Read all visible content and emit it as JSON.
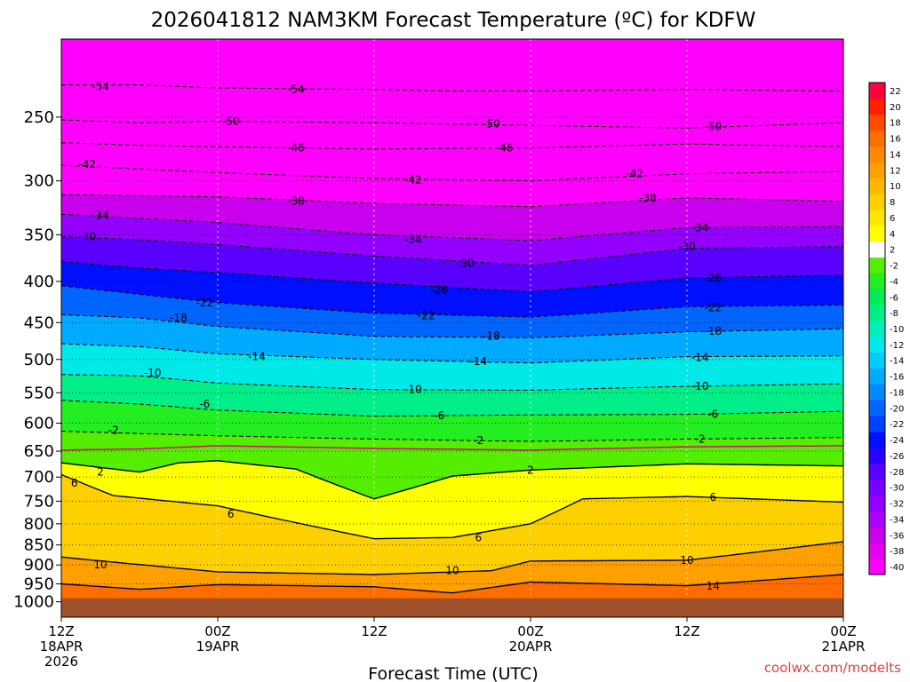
{
  "chart_data": {
    "type": "heatmap",
    "title": "2026041812 NAM3KM Forecast Temperature (ºC) for KDFW",
    "xlabel": "Forecast Time (UTC)",
    "ylabel": "",
    "credit": "coolwx.com/modelts",
    "credit_color": "#e0403c",
    "x_range_hours": [
      0,
      60
    ],
    "x_ticks": [
      {
        "hour": 0,
        "lines": [
          "12Z",
          "18APR",
          "2026"
        ]
      },
      {
        "hour": 12,
        "lines": [
          "00Z",
          "19APR"
        ]
      },
      {
        "hour": 24,
        "lines": [
          "12Z"
        ]
      },
      {
        "hour": 36,
        "lines": [
          "00Z",
          "20APR"
        ]
      },
      {
        "hour": 48,
        "lines": [
          "12Z"
        ]
      },
      {
        "hour": 60,
        "lines": [
          "00Z",
          "21APR"
        ]
      }
    ],
    "y_axis": {
      "scale": "log",
      "top_hpa": 200,
      "bottom_hpa": 1045
    },
    "y_ticks": [
      250,
      300,
      350,
      400,
      450,
      500,
      550,
      600,
      650,
      700,
      750,
      800,
      850,
      900,
      950,
      1000
    ],
    "surface_pressure_hpa": 990,
    "ground_color": "#a0522d",
    "colorbar": {
      "levels": [
        -40,
        -38,
        -36,
        -34,
        -32,
        -30,
        -28,
        -26,
        -24,
        -22,
        -20,
        -18,
        -16,
        -14,
        -12,
        -10,
        -8,
        -6,
        -4,
        -2,
        2,
        4,
        6,
        8,
        10,
        12,
        14,
        16,
        18,
        20,
        22
      ],
      "colors": [
        "#ff00ff",
        "#e400ee",
        "#c900ee",
        "#ae00ff",
        "#9400ff",
        "#7a00ff",
        "#5a00ff",
        "#2a00ff",
        "#0010ff",
        "#0040ff",
        "#0064ff",
        "#0088ff",
        "#00aaff",
        "#00ccff",
        "#00e8e8",
        "#00eebb",
        "#00ee88",
        "#00ee55",
        "#22ee22",
        "#55ee00",
        "#ffffff",
        "#ffff00",
        "#ffe800",
        "#ffd000",
        "#ffb800",
        "#ffa000",
        "#ff8800",
        "#ff6c00",
        "#ff4a00",
        "#ff2000",
        "#ff0040"
      ]
    },
    "series": [
      {
        "name": "-54",
        "values": [
          [
            0,
            228
          ],
          [
            6,
            228
          ],
          [
            12,
            230
          ],
          [
            24,
            231
          ],
          [
            30,
            232
          ],
          [
            36,
            232
          ],
          [
            48,
            231
          ],
          [
            60,
            232
          ]
        ]
      },
      {
        "name": "-50",
        "values": [
          [
            0,
            252
          ],
          [
            6,
            254
          ],
          [
            12,
            253
          ],
          [
            24,
            254
          ],
          [
            36,
            256
          ],
          [
            48,
            258
          ],
          [
            60,
            254
          ]
        ]
      },
      {
        "name": "-46",
        "values": [
          [
            0,
            269
          ],
          [
            6,
            271
          ],
          [
            12,
            272
          ],
          [
            24,
            274
          ],
          [
            36,
            273
          ],
          [
            48,
            270
          ],
          [
            60,
            272
          ]
        ]
      },
      {
        "name": "-42",
        "values": [
          [
            0,
            287
          ],
          [
            6,
            290
          ],
          [
            12,
            293
          ],
          [
            24,
            298
          ],
          [
            36,
            300
          ],
          [
            48,
            294
          ],
          [
            60,
            292
          ]
        ]
      },
      {
        "name": "-38",
        "values": [
          [
            0,
            312
          ],
          [
            6,
            313
          ],
          [
            12,
            314
          ],
          [
            24,
            320
          ],
          [
            36,
            323
          ],
          [
            48,
            315
          ],
          [
            60,
            318
          ]
        ]
      },
      {
        "name": "-34",
        "values": [
          [
            0,
            330
          ],
          [
            6,
            334
          ],
          [
            12,
            338
          ],
          [
            24,
            350
          ],
          [
            36,
            356
          ],
          [
            48,
            343
          ],
          [
            60,
            342
          ]
        ]
      },
      {
        "name": "-30",
        "values": [
          [
            0,
            352
          ],
          [
            6,
            355
          ],
          [
            12,
            360
          ],
          [
            24,
            372
          ],
          [
            36,
            382
          ],
          [
            48,
            364
          ],
          [
            60,
            362
          ]
        ]
      },
      {
        "name": "-26",
        "values": [
          [
            0,
            378
          ],
          [
            6,
            385
          ],
          [
            12,
            390
          ],
          [
            24,
            402
          ],
          [
            36,
            412
          ],
          [
            48,
            396
          ],
          [
            60,
            393
          ]
        ]
      },
      {
        "name": "-22",
        "values": [
          [
            0,
            405
          ],
          [
            6,
            415
          ],
          [
            12,
            425
          ],
          [
            24,
            438
          ],
          [
            36,
            443
          ],
          [
            48,
            430
          ],
          [
            60,
            428
          ]
        ]
      },
      {
        "name": "-18",
        "values": [
          [
            0,
            440
          ],
          [
            6,
            444
          ],
          [
            12,
            455
          ],
          [
            24,
            468
          ],
          [
            36,
            470
          ],
          [
            48,
            462
          ],
          [
            60,
            458
          ]
        ]
      },
      {
        "name": "-14",
        "values": [
          [
            0,
            478
          ],
          [
            6,
            482
          ],
          [
            12,
            492
          ],
          [
            24,
            500
          ],
          [
            36,
            505
          ],
          [
            48,
            496
          ],
          [
            60,
            495
          ]
        ]
      },
      {
        "name": "-10",
        "values": [
          [
            0,
            522
          ],
          [
            6,
            524
          ],
          [
            12,
            535
          ],
          [
            24,
            545
          ],
          [
            36,
            546
          ],
          [
            48,
            540
          ],
          [
            60,
            536
          ]
        ]
      },
      {
        "name": "-6",
        "values": [
          [
            0,
            562
          ],
          [
            6,
            568
          ],
          [
            12,
            578
          ],
          [
            24,
            588
          ],
          [
            36,
            586
          ],
          [
            48,
            585
          ],
          [
            60,
            580
          ]
        ]
      },
      {
        "name": "-2",
        "values": [
          [
            0,
            614
          ],
          [
            6,
            618
          ],
          [
            12,
            622
          ],
          [
            24,
            628
          ],
          [
            36,
            632
          ],
          [
            48,
            628
          ],
          [
            60,
            625
          ]
        ]
      },
      {
        "name": "2",
        "values": [
          [
            0,
            672
          ],
          [
            6,
            690
          ],
          [
            9,
            672
          ],
          [
            12,
            668
          ],
          [
            18,
            684
          ],
          [
            24,
            745
          ],
          [
            30,
            698
          ],
          [
            36,
            686
          ],
          [
            48,
            674
          ],
          [
            60,
            678
          ]
        ]
      },
      {
        "name": "6",
        "values": [
          [
            0,
            695
          ],
          [
            4,
            738
          ],
          [
            12,
            760
          ],
          [
            24,
            835
          ],
          [
            30,
            832
          ],
          [
            36,
            800
          ],
          [
            40,
            745
          ],
          [
            48,
            740
          ],
          [
            60,
            752
          ]
        ]
      },
      {
        "name": "10",
        "values": [
          [
            0,
            880
          ],
          [
            12,
            918
          ],
          [
            24,
            925
          ],
          [
            33,
            915
          ],
          [
            36,
            890
          ],
          [
            48,
            888
          ],
          [
            60,
            842
          ]
        ]
      },
      {
        "name": "14",
        "values": [
          [
            0,
            950
          ],
          [
            6,
            965
          ],
          [
            12,
            952
          ],
          [
            24,
            958
          ],
          [
            30,
            975
          ],
          [
            36,
            945
          ],
          [
            48,
            955
          ],
          [
            60,
            925
          ]
        ]
      }
    ],
    "highlight_isotherm": {
      "name": "0",
      "color": "#e0008a",
      "values": [
        [
          0,
          648
        ],
        [
          6,
          646
        ],
        [
          12,
          640
        ],
        [
          24,
          645
        ],
        [
          36,
          648
        ],
        [
          48,
          642
        ],
        [
          60,
          640
        ]
      ]
    },
    "contour_labels": [
      {
        "text": "-54",
        "hour": 3,
        "p": 229
      },
      {
        "text": "-54",
        "hour": 18,
        "p": 231
      },
      {
        "text": "-50",
        "hour": 13,
        "p": 253
      },
      {
        "text": "-50",
        "hour": 33,
        "p": 255
      },
      {
        "text": "-50",
        "hour": 50,
        "p": 257
      },
      {
        "text": "-46",
        "hour": 18,
        "p": 273
      },
      {
        "text": "-46",
        "hour": 34,
        "p": 273
      },
      {
        "text": "-42",
        "hour": 2,
        "p": 286
      },
      {
        "text": "-42",
        "hour": 27,
        "p": 299
      },
      {
        "text": "-42",
        "hour": 44,
        "p": 294
      },
      {
        "text": "-38",
        "hour": 18,
        "p": 318
      },
      {
        "text": "-38",
        "hour": 45,
        "p": 315
      },
      {
        "text": "-34",
        "hour": 3,
        "p": 331
      },
      {
        "text": "-34",
        "hour": 27,
        "p": 355
      },
      {
        "text": "-34",
        "hour": 49,
        "p": 343
      },
      {
        "text": "-30",
        "hour": 2,
        "p": 352
      },
      {
        "text": "-30",
        "hour": 31,
        "p": 380
      },
      {
        "text": "-30",
        "hour": 48,
        "p": 362
      },
      {
        "text": "-26",
        "hour": 29,
        "p": 410
      },
      {
        "text": "-26",
        "hour": 50,
        "p": 396
      },
      {
        "text": "-22",
        "hour": 11,
        "p": 425
      },
      {
        "text": "-22",
        "hour": 28,
        "p": 441
      },
      {
        "text": "-22",
        "hour": 50,
        "p": 431
      },
      {
        "text": "-18",
        "hour": 9,
        "p": 444
      },
      {
        "text": "-18",
        "hour": 33,
        "p": 468
      },
      {
        "text": "-18",
        "hour": 50,
        "p": 461
      },
      {
        "text": "-14",
        "hour": 15,
        "p": 496
      },
      {
        "text": "-14",
        "hour": 32,
        "p": 503
      },
      {
        "text": "-14",
        "hour": 49,
        "p": 497
      },
      {
        "text": "-10",
        "hour": 7,
        "p": 520
      },
      {
        "text": "-10",
        "hour": 27,
        "p": 545
      },
      {
        "text": "-10",
        "hour": 49,
        "p": 540
      },
      {
        "text": "-6",
        "hour": 11,
        "p": 568
      },
      {
        "text": "-6",
        "hour": 29,
        "p": 587
      },
      {
        "text": "-6",
        "hour": 50,
        "p": 585
      },
      {
        "text": "-2",
        "hour": 4,
        "p": 612
      },
      {
        "text": "-2",
        "hour": 32,
        "p": 630
      },
      {
        "text": "-2",
        "hour": 49,
        "p": 628
      },
      {
        "text": "2",
        "hour": 3,
        "p": 690
      },
      {
        "text": "2",
        "hour": 36,
        "p": 686
      },
      {
        "text": "6",
        "hour": 1,
        "p": 712
      },
      {
        "text": "6",
        "hour": 13,
        "p": 778
      },
      {
        "text": "6",
        "hour": 32,
        "p": 832
      },
      {
        "text": "6",
        "hour": 50,
        "p": 742
      },
      {
        "text": "10",
        "hour": 3,
        "p": 900
      },
      {
        "text": "10",
        "hour": 30,
        "p": 915
      },
      {
        "text": "10",
        "hour": 48,
        "p": 888
      },
      {
        "text": "14",
        "hour": 50,
        "p": 956
      }
    ]
  }
}
